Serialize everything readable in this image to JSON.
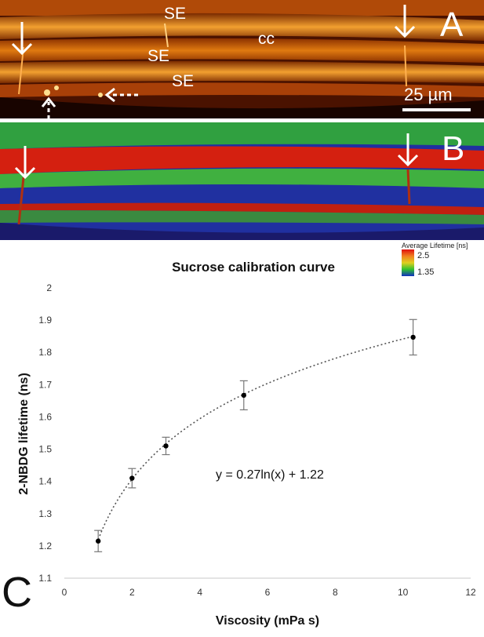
{
  "panel_a": {
    "letter": "A",
    "labels": {
      "se1": "SE",
      "se2": "SE",
      "se3": "SE",
      "cc": "cc"
    },
    "scale_bar": "25 µm"
  },
  "panel_b": {
    "letter": "B",
    "legend": {
      "title": "Average Lifetime [ns]",
      "max": "2.5",
      "min": "1.35"
    }
  },
  "panel_c": {
    "letter": "C"
  },
  "colors": {
    "hot_bg": "#5a1a00",
    "hot_band": "#e07a10",
    "fret_red": "#d42010",
    "fret_green": "#40b040",
    "fret_blue": "#2030a0"
  },
  "chart_data": {
    "type": "scatter",
    "title": "Sucrose calibration curve",
    "xlabel": "Viscosity (mPa s)",
    "ylabel": "2-NBDG lifetime (ns)",
    "xlim": [
      0,
      12
    ],
    "ylim": [
      1.1,
      2
    ],
    "xticks": [
      "0",
      "2",
      "4",
      "6",
      "8",
      "10",
      "12"
    ],
    "yticks": [
      "1.1",
      "1.2",
      "1.3",
      "1.4",
      "1.5",
      "1.6",
      "1.7",
      "1.8",
      "1.9",
      "2"
    ],
    "points": [
      {
        "x": 1.0,
        "y": 1.215,
        "err": 0.033
      },
      {
        "x": 2.0,
        "y": 1.41,
        "err": 0.03
      },
      {
        "x": 3.0,
        "y": 1.51,
        "err": 0.027
      },
      {
        "x": 5.3,
        "y": 1.667,
        "err": 0.045
      },
      {
        "x": 10.3,
        "y": 1.847,
        "err": 0.055
      }
    ],
    "fit": {
      "a": 0.27,
      "b": 1.22,
      "label": "y = 0.27ln(x) + 1.22"
    }
  }
}
